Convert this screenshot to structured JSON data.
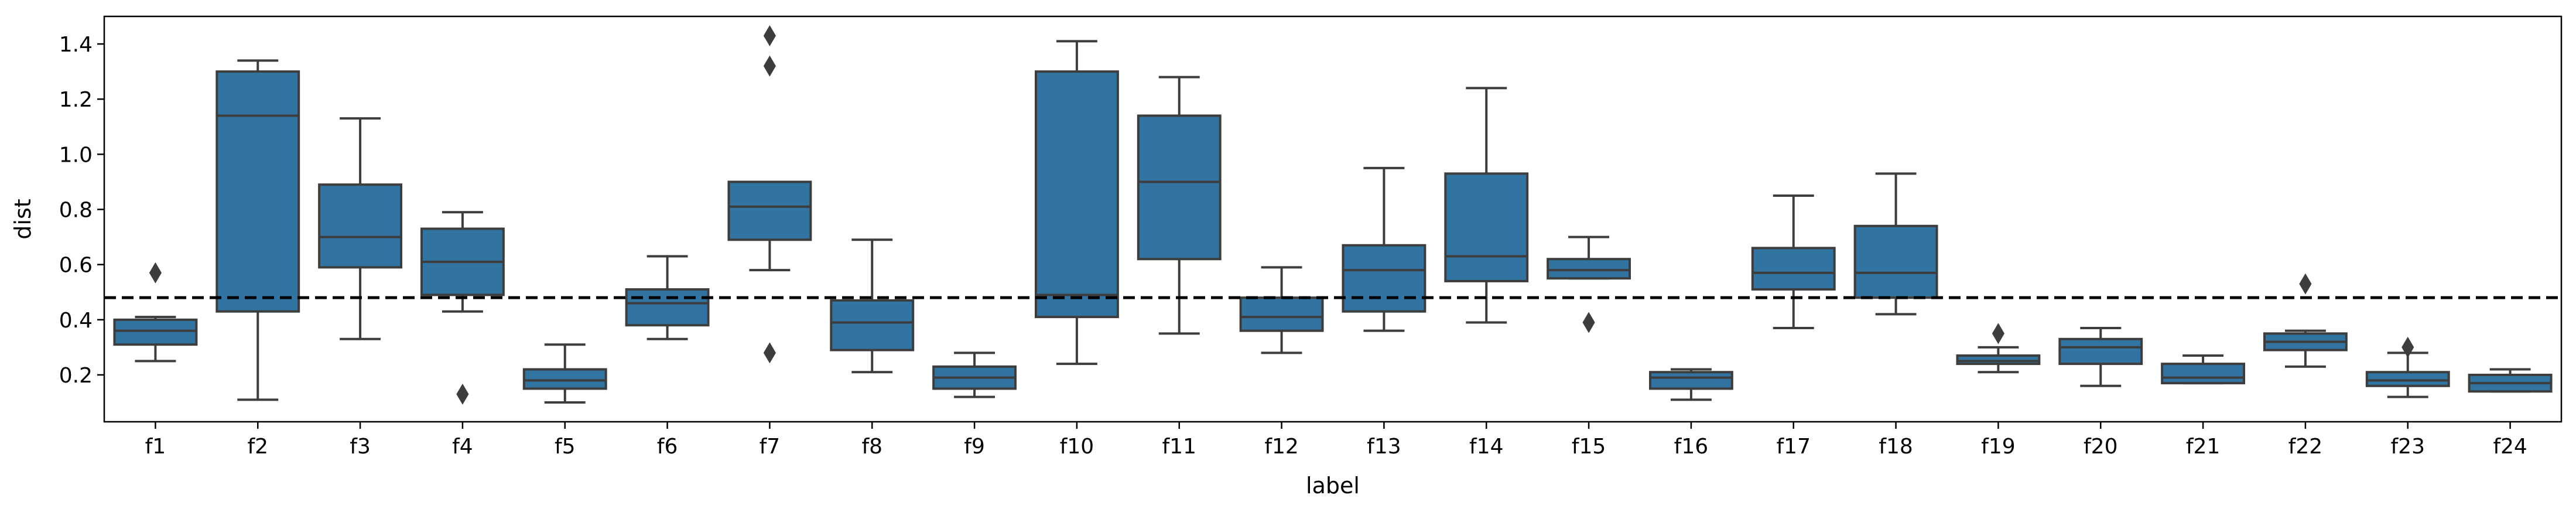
{
  "chart_data": {
    "type": "box",
    "xlabel": "label",
    "ylabel": "dist",
    "ylim": [
      0.03,
      1.5
    ],
    "yticks": [
      0.2,
      0.4,
      0.6,
      0.8,
      1.0,
      1.2,
      1.4
    ],
    "ytick_labels": [
      "0.2",
      "0.4",
      "0.6",
      "0.8",
      "1.0",
      "1.2",
      "1.4"
    ],
    "reference_line": {
      "y": 0.48,
      "style": "dashed",
      "color": "#000000"
    },
    "box_color": "#3274a1",
    "edge_color": "#3d3d3d",
    "grid": false,
    "categories": [
      "f1",
      "f2",
      "f3",
      "f4",
      "f5",
      "f6",
      "f7",
      "f8",
      "f9",
      "f10",
      "f11",
      "f12",
      "f13",
      "f14",
      "f15",
      "f16",
      "f17",
      "f18",
      "f19",
      "f20",
      "f21",
      "f22",
      "f23",
      "f24"
    ],
    "boxes": [
      {
        "label": "f1",
        "whislo": 0.25,
        "q1": 0.31,
        "med": 0.36,
        "q3": 0.4,
        "whishi": 0.41,
        "fliers": [
          0.57
        ]
      },
      {
        "label": "f2",
        "whislo": 0.11,
        "q1": 0.43,
        "med": 1.14,
        "q3": 1.3,
        "whishi": 1.34,
        "fliers": []
      },
      {
        "label": "f3",
        "whislo": 0.33,
        "q1": 0.59,
        "med": 0.7,
        "q3": 0.89,
        "whishi": 1.13,
        "fliers": []
      },
      {
        "label": "f4",
        "whislo": 0.43,
        "q1": 0.49,
        "med": 0.61,
        "q3": 0.73,
        "whishi": 0.79,
        "fliers": [
          0.13
        ]
      },
      {
        "label": "f5",
        "whislo": 0.1,
        "q1": 0.15,
        "med": 0.18,
        "q3": 0.22,
        "whishi": 0.31,
        "fliers": []
      },
      {
        "label": "f6",
        "whislo": 0.33,
        "q1": 0.38,
        "med": 0.46,
        "q3": 0.51,
        "whishi": 0.63,
        "fliers": []
      },
      {
        "label": "f7",
        "whislo": 0.58,
        "q1": 0.69,
        "med": 0.81,
        "q3": 0.9,
        "whishi": 0.9,
        "fliers": [
          0.28,
          1.32,
          1.43
        ]
      },
      {
        "label": "f8",
        "whislo": 0.21,
        "q1": 0.29,
        "med": 0.39,
        "q3": 0.47,
        "whishi": 0.69,
        "fliers": []
      },
      {
        "label": "f9",
        "whislo": 0.12,
        "q1": 0.15,
        "med": 0.19,
        "q3": 0.23,
        "whishi": 0.28,
        "fliers": []
      },
      {
        "label": "f10",
        "whislo": 0.24,
        "q1": 0.41,
        "med": 0.49,
        "q3": 1.3,
        "whishi": 1.41,
        "fliers": []
      },
      {
        "label": "f11",
        "whislo": 0.35,
        "q1": 0.62,
        "med": 0.9,
        "q3": 1.14,
        "whishi": 1.28,
        "fliers": []
      },
      {
        "label": "f12",
        "whislo": 0.28,
        "q1": 0.36,
        "med": 0.41,
        "q3": 0.48,
        "whishi": 0.59,
        "fliers": []
      },
      {
        "label": "f13",
        "whislo": 0.36,
        "q1": 0.43,
        "med": 0.58,
        "q3": 0.67,
        "whishi": 0.95,
        "fliers": []
      },
      {
        "label": "f14",
        "whislo": 0.39,
        "q1": 0.54,
        "med": 0.63,
        "q3": 0.93,
        "whishi": 1.24,
        "fliers": []
      },
      {
        "label": "f15",
        "whislo": 0.55,
        "q1": 0.55,
        "med": 0.58,
        "q3": 0.62,
        "whishi": 0.7,
        "fliers": [
          0.39
        ]
      },
      {
        "label": "f16",
        "whislo": 0.11,
        "q1": 0.15,
        "med": 0.19,
        "q3": 0.21,
        "whishi": 0.22,
        "fliers": []
      },
      {
        "label": "f17",
        "whislo": 0.37,
        "q1": 0.51,
        "med": 0.57,
        "q3": 0.66,
        "whishi": 0.85,
        "fliers": []
      },
      {
        "label": "f18",
        "whislo": 0.42,
        "q1": 0.48,
        "med": 0.57,
        "q3": 0.74,
        "whishi": 0.93,
        "fliers": []
      },
      {
        "label": "f19",
        "whislo": 0.21,
        "q1": 0.24,
        "med": 0.25,
        "q3": 0.27,
        "whishi": 0.3,
        "fliers": [
          0.35
        ]
      },
      {
        "label": "f20",
        "whislo": 0.16,
        "q1": 0.24,
        "med": 0.3,
        "q3": 0.33,
        "whishi": 0.37,
        "fliers": []
      },
      {
        "label": "f21",
        "whislo": 0.17,
        "q1": 0.17,
        "med": 0.19,
        "q3": 0.24,
        "whishi": 0.27,
        "fliers": []
      },
      {
        "label": "f22",
        "whislo": 0.23,
        "q1": 0.29,
        "med": 0.32,
        "q3": 0.35,
        "whishi": 0.36,
        "fliers": [
          0.53
        ]
      },
      {
        "label": "f23",
        "whislo": 0.12,
        "q1": 0.16,
        "med": 0.18,
        "q3": 0.21,
        "whishi": 0.28,
        "fliers": [
          0.3
        ]
      },
      {
        "label": "f24",
        "whislo": 0.14,
        "q1": 0.14,
        "med": 0.17,
        "q3": 0.2,
        "whishi": 0.22,
        "fliers": []
      }
    ]
  }
}
